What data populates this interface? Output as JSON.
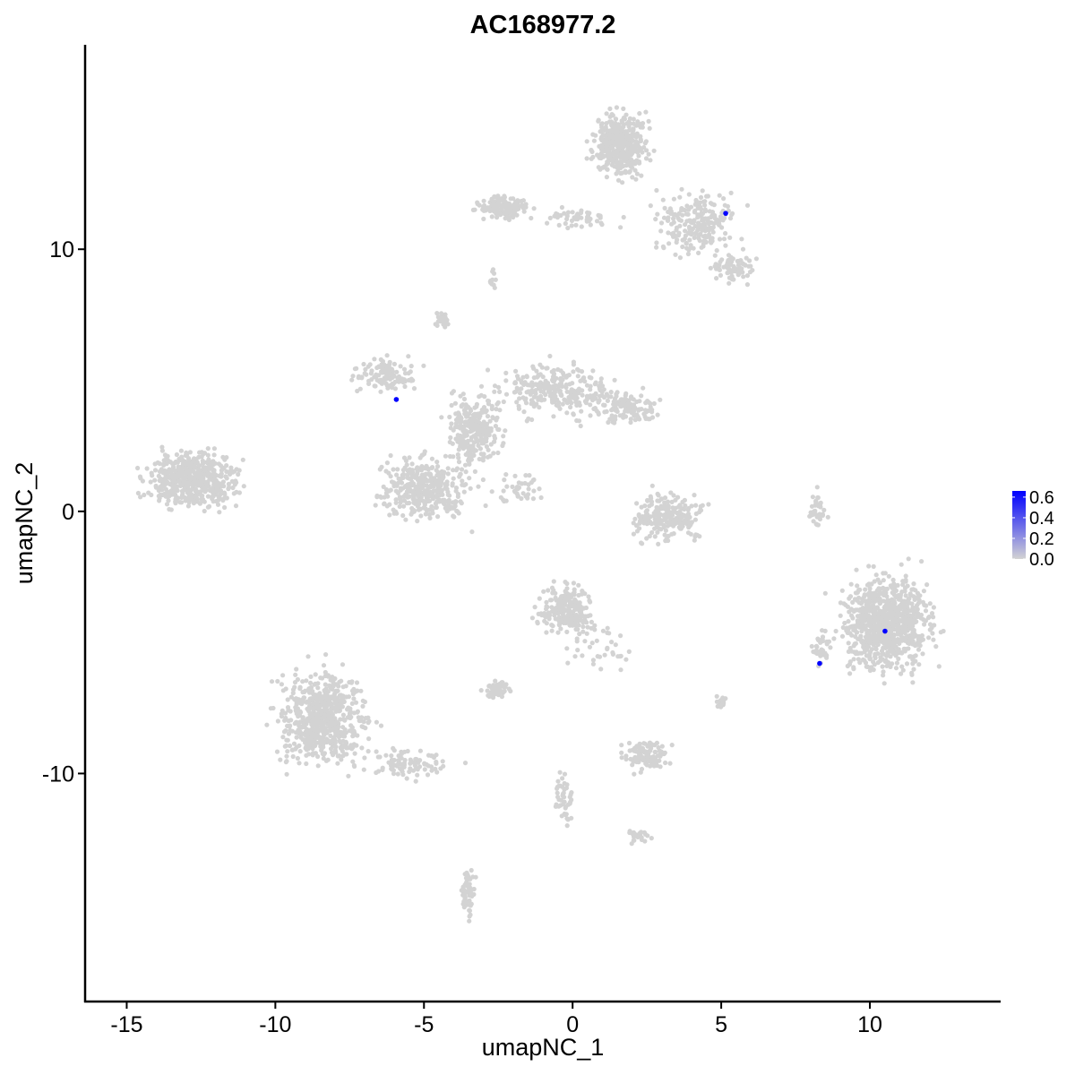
{
  "chart_data": {
    "type": "scatter",
    "title": "AC168977.2",
    "xlabel": "umapNC_1",
    "ylabel": "umapNC_2",
    "xlim": [
      -16.4,
      14.4
    ],
    "ylim": [
      -18.7,
      17.8
    ],
    "x_ticks": [
      -15,
      -10,
      -5,
      0,
      5,
      10
    ],
    "x_tick_labels": [
      "-15",
      "-10",
      "-5",
      "0",
      "5",
      "10"
    ],
    "y_ticks": [
      -10,
      0,
      10
    ],
    "y_tick_labels": [
      "-10",
      "0",
      "10"
    ],
    "grid": false,
    "colors": {
      "low": "#d3d3d3",
      "high": "#0000ff"
    },
    "legend": {
      "position": "right",
      "type": "colorbar",
      "range": [
        0,
        0.66
      ],
      "ticks": [
        0.0,
        0.2,
        0.4,
        0.6
      ],
      "tick_labels": [
        "0.0",
        "0.2",
        "0.4",
        "0.6"
      ]
    },
    "zero_expression_clusters": [
      {
        "center": [
          -12.8,
          1.2
        ],
        "spread": [
          1.0,
          0.7
        ],
        "n": 520
      },
      {
        "center": [
          -8.4,
          -7.9
        ],
        "spread": [
          1.0,
          1.2
        ],
        "n": 650
      },
      {
        "center": [
          -5.5,
          -9.6
        ],
        "spread": [
          1.0,
          0.4
        ],
        "n": 90
      },
      {
        "center": [
          -5.0,
          0.9
        ],
        "spread": [
          1.0,
          0.8
        ],
        "n": 380
      },
      {
        "center": [
          -6.3,
          5.2
        ],
        "spread": [
          0.7,
          0.4
        ],
        "n": 120
      },
      {
        "center": [
          -3.3,
          3.2
        ],
        "spread": [
          0.6,
          1.0
        ],
        "n": 260
      },
      {
        "center": [
          -0.5,
          4.6
        ],
        "spread": [
          1.3,
          0.7
        ],
        "n": 260
      },
      {
        "center": [
          1.8,
          4.0
        ],
        "spread": [
          0.7,
          0.4
        ],
        "n": 120
      },
      {
        "center": [
          -4.4,
          7.3
        ],
        "spread": [
          0.15,
          0.2
        ],
        "n": 25
      },
      {
        "center": [
          -1.8,
          0.9
        ],
        "spread": [
          0.5,
          0.4
        ],
        "n": 40
      },
      {
        "center": [
          1.6,
          14.0
        ],
        "spread": [
          0.6,
          0.8
        ],
        "n": 420
      },
      {
        "center": [
          4.2,
          11.0
        ],
        "spread": [
          0.9,
          0.8
        ],
        "n": 220
      },
      {
        "center": [
          5.4,
          9.3
        ],
        "spread": [
          0.5,
          0.4
        ],
        "n": 80
      },
      {
        "center": [
          -2.3,
          11.6
        ],
        "spread": [
          0.6,
          0.3
        ],
        "n": 140
      },
      {
        "center": [
          0.2,
          11.2
        ],
        "spread": [
          0.9,
          0.3
        ],
        "n": 50
      },
      {
        "center": [
          -2.7,
          8.8
        ],
        "spread": [
          0.12,
          0.3
        ],
        "n": 12
      },
      {
        "center": [
          3.2,
          -0.2
        ],
        "spread": [
          0.8,
          0.6
        ],
        "n": 220
      },
      {
        "center": [
          8.2,
          0.0
        ],
        "spread": [
          0.2,
          0.6
        ],
        "n": 40
      },
      {
        "center": [
          10.6,
          -4.3
        ],
        "spread": [
          1.0,
          1.2
        ],
        "n": 850
      },
      {
        "center": [
          8.4,
          -5.2
        ],
        "spread": [
          0.25,
          0.5
        ],
        "n": 35
      },
      {
        "center": [
          -0.2,
          -3.7
        ],
        "spread": [
          0.6,
          0.6
        ],
        "n": 230
      },
      {
        "center": [
          -2.5,
          -6.8
        ],
        "spread": [
          0.35,
          0.2
        ],
        "n": 60
      },
      {
        "center": [
          2.4,
          -9.3
        ],
        "spread": [
          0.5,
          0.4
        ],
        "n": 110
      },
      {
        "center": [
          5.0,
          -7.3
        ],
        "spread": [
          0.12,
          0.15
        ],
        "n": 20
      },
      {
        "center": [
          -3.5,
          -14.6
        ],
        "spread": [
          0.15,
          0.6
        ],
        "n": 60
      },
      {
        "center": [
          -0.3,
          -11.0
        ],
        "spread": [
          0.2,
          0.7
        ],
        "n": 45
      },
      {
        "center": [
          2.3,
          -12.4
        ],
        "spread": [
          0.3,
          0.15
        ],
        "n": 25
      },
      {
        "center": [
          0.7,
          -5.1
        ],
        "spread": [
          1.0,
          0.6
        ],
        "n": 40
      }
    ],
    "expressing_points": [
      {
        "x": 5.15,
        "y": 11.37,
        "value": 0.66
      },
      {
        "x": -5.93,
        "y": 4.27,
        "value": 0.66
      },
      {
        "x": 10.51,
        "y": -4.57,
        "value": 0.66
      },
      {
        "x": 8.31,
        "y": -5.8,
        "value": 0.66
      }
    ]
  }
}
